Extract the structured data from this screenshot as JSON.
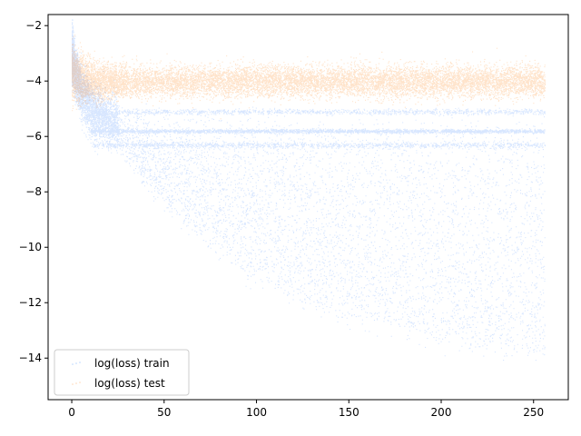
{
  "chart_data": {
    "type": "scatter",
    "title": "",
    "xlabel": "",
    "ylabel": "",
    "xlim": [
      -12.8,
      268.8
    ],
    "ylim": [
      -15.5,
      -1.6
    ],
    "x_ticks": [
      0,
      50,
      100,
      150,
      200,
      250
    ],
    "y_ticks": [
      -14,
      -12,
      -10,
      -8,
      -6,
      -4,
      -2
    ],
    "grid": false,
    "legend_position": "lower-left",
    "series": [
      {
        "name": "log(loss) train",
        "color": "#1f77ff",
        "summary": {
          "x_range": [
            0,
            256
          ],
          "start_log_loss": -2.7,
          "upper_plateaus": [
            -5.1,
            -5.8,
            -6.3
          ],
          "lower_envelope_end": -14.4,
          "median_end": -12.7
        }
      },
      {
        "name": "log(loss) test",
        "color": "#ff7f0e",
        "summary": {
          "x_range": [
            0,
            256
          ],
          "start_log_loss": -3.5,
          "band_center": -4.0,
          "band_top": -3.3,
          "band_bottom": -4.8
        }
      }
    ]
  }
}
